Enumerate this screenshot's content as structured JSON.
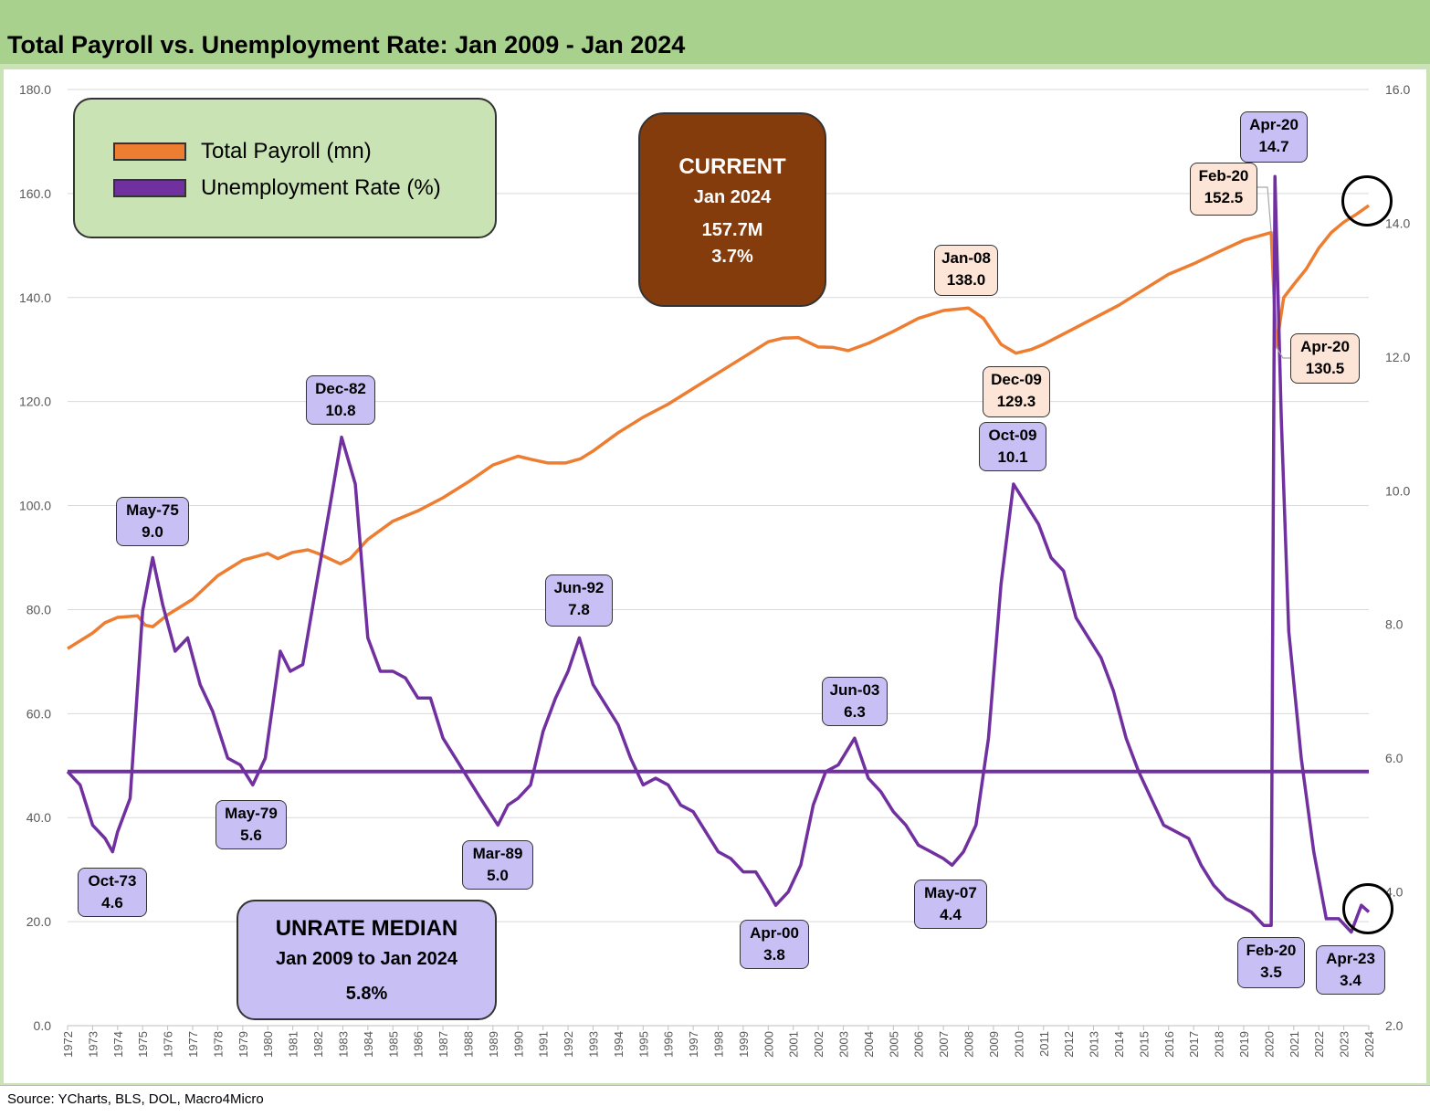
{
  "title": "Total Payroll vs. Unemployment Rate: Jan 2009 - Jan 2024",
  "source": "Source: YCharts, BLS, DOL, Macro4Micro",
  "legend": {
    "payroll": "Total Payroll (mn)",
    "unrate": "Unemployment Rate (%)"
  },
  "current_box": {
    "heading": "CURRENT",
    "date": "Jan 2024",
    "payroll": "157.7M",
    "unrate": "3.7%"
  },
  "median_box": {
    "heading": "UNRATE MEDIAN",
    "period": "Jan 2009 to Jan 2024",
    "value": "5.8%"
  },
  "colors": {
    "payroll": "#ed7d31",
    "unrate": "#7030a0",
    "median_line": "#7030a0",
    "grid": "#d9d9d9",
    "current_box": "#843c0c",
    "unrate_label": "#c8c0f5",
    "payroll_label": "#fce4d6",
    "title_band": "#a9d18e",
    "frame": "#c9e3b4"
  },
  "chart_data": {
    "type": "line",
    "x_range": [
      1972,
      2024
    ],
    "x_ticks": [
      "1972",
      "1973",
      "1974",
      "1975",
      "1976",
      "1977",
      "1978",
      "1979",
      "1980",
      "1981",
      "1982",
      "1983",
      "1984",
      "1985",
      "1986",
      "1987",
      "1988",
      "1989",
      "1990",
      "1991",
      "1992",
      "1993",
      "1994",
      "1995",
      "1996",
      "1997",
      "1998",
      "1999",
      "2000",
      "2001",
      "2002",
      "2003",
      "2004",
      "2005",
      "2006",
      "2007",
      "2008",
      "2009",
      "2010",
      "2011",
      "2012",
      "2013",
      "2014",
      "2015",
      "2016",
      "2017",
      "2018",
      "2019",
      "2020",
      "2021",
      "2022",
      "2023",
      "2024"
    ],
    "y_left": {
      "range": [
        0,
        180
      ],
      "ticks": [
        "0.0",
        "20.0",
        "40.0",
        "60.0",
        "80.0",
        "100.0",
        "120.0",
        "140.0",
        "160.0",
        "180.0"
      ]
    },
    "y_right": {
      "range": [
        2,
        16
      ],
      "ticks": [
        "2.0",
        "4.0",
        "6.0",
        "8.0",
        "10.0",
        "12.0",
        "14.0",
        "16.0"
      ]
    },
    "grid": true,
    "legend_position": "top-left",
    "median_unrate": 5.8,
    "series": [
      {
        "name": "Total Payroll (mn)",
        "axis": "left",
        "points": [
          [
            1972.0,
            72.5
          ],
          [
            1973.0,
            75.5
          ],
          [
            1973.5,
            77.5
          ],
          [
            1974.0,
            78.5
          ],
          [
            1974.8,
            78.8
          ],
          [
            1975.1,
            77.0
          ],
          [
            1975.4,
            76.7
          ],
          [
            1976.0,
            79.0
          ],
          [
            1977.0,
            82.0
          ],
          [
            1978.0,
            86.5
          ],
          [
            1979.0,
            89.5
          ],
          [
            1980.0,
            90.8
          ],
          [
            1980.4,
            89.8
          ],
          [
            1981.0,
            91.0
          ],
          [
            1981.6,
            91.5
          ],
          [
            1982.0,
            90.8
          ],
          [
            1982.9,
            88.8
          ],
          [
            1983.3,
            89.8
          ],
          [
            1984.0,
            93.5
          ],
          [
            1985.0,
            97.0
          ],
          [
            1986.0,
            99.0
          ],
          [
            1987.0,
            101.5
          ],
          [
            1988.0,
            104.5
          ],
          [
            1989.0,
            107.8
          ],
          [
            1990.0,
            109.5
          ],
          [
            1990.6,
            108.8
          ],
          [
            1991.2,
            108.2
          ],
          [
            1991.9,
            108.2
          ],
          [
            1992.5,
            109.0
          ],
          [
            1993.0,
            110.5
          ],
          [
            1994.0,
            114.0
          ],
          [
            1995.0,
            117.0
          ],
          [
            1996.0,
            119.5
          ],
          [
            1997.0,
            122.5
          ],
          [
            1998.0,
            125.5
          ],
          [
            1999.0,
            128.5
          ],
          [
            2000.0,
            131.5
          ],
          [
            2000.6,
            132.2
          ],
          [
            2001.2,
            132.3
          ],
          [
            2002.0,
            130.5
          ],
          [
            2002.6,
            130.4
          ],
          [
            2003.2,
            129.8
          ],
          [
            2004.0,
            131.2
          ],
          [
            2005.0,
            133.5
          ],
          [
            2006.0,
            136.0
          ],
          [
            2007.0,
            137.5
          ],
          [
            2008.0,
            138.0
          ],
          [
            2008.6,
            136.0
          ],
          [
            2009.3,
            131.0
          ],
          [
            2009.9,
            129.3
          ],
          [
            2010.5,
            130.0
          ],
          [
            2011.0,
            131.0
          ],
          [
            2012.0,
            133.5
          ],
          [
            2013.0,
            136.0
          ],
          [
            2014.0,
            138.5
          ],
          [
            2015.0,
            141.5
          ],
          [
            2016.0,
            144.5
          ],
          [
            2017.0,
            146.5
          ],
          [
            2018.0,
            148.8
          ],
          [
            2019.0,
            151.0
          ],
          [
            2020.1,
            152.5
          ],
          [
            2020.3,
            130.5
          ],
          [
            2020.6,
            140.0
          ],
          [
            2021.0,
            142.5
          ],
          [
            2021.5,
            145.5
          ],
          [
            2022.0,
            149.5
          ],
          [
            2022.5,
            152.5
          ],
          [
            2023.0,
            154.5
          ],
          [
            2023.5,
            156.0
          ],
          [
            2024.0,
            157.7
          ]
        ]
      },
      {
        "name": "Unemployment Rate (%)",
        "axis": "right",
        "points": [
          [
            1972.0,
            5.8
          ],
          [
            1972.5,
            5.6
          ],
          [
            1973.0,
            5.0
          ],
          [
            1973.5,
            4.8
          ],
          [
            1973.8,
            4.6
          ],
          [
            1974.0,
            4.9
          ],
          [
            1974.5,
            5.4
          ],
          [
            1975.0,
            8.2
          ],
          [
            1975.4,
            9.0
          ],
          [
            1975.8,
            8.3
          ],
          [
            1976.3,
            7.6
          ],
          [
            1976.8,
            7.8
          ],
          [
            1977.3,
            7.1
          ],
          [
            1977.8,
            6.7
          ],
          [
            1978.4,
            6.0
          ],
          [
            1978.9,
            5.9
          ],
          [
            1979.4,
            5.6
          ],
          [
            1979.9,
            6.0
          ],
          [
            1980.5,
            7.6
          ],
          [
            1980.9,
            7.3
          ],
          [
            1981.4,
            7.4
          ],
          [
            1981.9,
            8.5
          ],
          [
            1982.5,
            9.8
          ],
          [
            1982.95,
            10.8
          ],
          [
            1983.5,
            10.1
          ],
          [
            1984.0,
            7.8
          ],
          [
            1984.5,
            7.3
          ],
          [
            1985.0,
            7.3
          ],
          [
            1985.5,
            7.2
          ],
          [
            1986.0,
            6.9
          ],
          [
            1986.5,
            6.9
          ],
          [
            1987.0,
            6.3
          ],
          [
            1987.5,
            6.0
          ],
          [
            1988.0,
            5.7
          ],
          [
            1988.5,
            5.4
          ],
          [
            1989.2,
            5.0
          ],
          [
            1989.6,
            5.3
          ],
          [
            1990.0,
            5.4
          ],
          [
            1990.5,
            5.6
          ],
          [
            1991.0,
            6.4
          ],
          [
            1991.5,
            6.9
          ],
          [
            1992.0,
            7.3
          ],
          [
            1992.45,
            7.8
          ],
          [
            1993.0,
            7.1
          ],
          [
            1993.5,
            6.8
          ],
          [
            1994.0,
            6.5
          ],
          [
            1994.5,
            6.0
          ],
          [
            1995.0,
            5.6
          ],
          [
            1995.5,
            5.7
          ],
          [
            1996.0,
            5.6
          ],
          [
            1996.5,
            5.3
          ],
          [
            1997.0,
            5.2
          ],
          [
            1997.5,
            4.9
          ],
          [
            1998.0,
            4.6
          ],
          [
            1998.5,
            4.5
          ],
          [
            1999.0,
            4.3
          ],
          [
            1999.5,
            4.3
          ],
          [
            2000.0,
            4.0
          ],
          [
            2000.3,
            3.8
          ],
          [
            2000.8,
            4.0
          ],
          [
            2001.3,
            4.4
          ],
          [
            2001.8,
            5.3
          ],
          [
            2002.3,
            5.8
          ],
          [
            2002.8,
            5.9
          ],
          [
            2003.45,
            6.3
          ],
          [
            2004.0,
            5.7
          ],
          [
            2004.5,
            5.5
          ],
          [
            2005.0,
            5.2
          ],
          [
            2005.5,
            5.0
          ],
          [
            2006.0,
            4.7
          ],
          [
            2006.5,
            4.6
          ],
          [
            2007.0,
            4.5
          ],
          [
            2007.35,
            4.4
          ],
          [
            2007.8,
            4.6
          ],
          [
            2008.3,
            5.0
          ],
          [
            2008.8,
            6.3
          ],
          [
            2009.3,
            8.6
          ],
          [
            2009.8,
            10.1
          ],
          [
            2010.3,
            9.8
          ],
          [
            2010.8,
            9.5
          ],
          [
            2011.3,
            9.0
          ],
          [
            2011.8,
            8.8
          ],
          [
            2012.3,
            8.1
          ],
          [
            2012.8,
            7.8
          ],
          [
            2013.3,
            7.5
          ],
          [
            2013.8,
            7.0
          ],
          [
            2014.3,
            6.3
          ],
          [
            2014.8,
            5.8
          ],
          [
            2015.3,
            5.4
          ],
          [
            2015.8,
            5.0
          ],
          [
            2016.3,
            4.9
          ],
          [
            2016.8,
            4.8
          ],
          [
            2017.3,
            4.4
          ],
          [
            2017.8,
            4.1
          ],
          [
            2018.3,
            3.9
          ],
          [
            2018.8,
            3.8
          ],
          [
            2019.3,
            3.7
          ],
          [
            2019.8,
            3.5
          ],
          [
            2020.1,
            3.5
          ],
          [
            2020.25,
            14.7
          ],
          [
            2020.5,
            11.1
          ],
          [
            2020.8,
            7.9
          ],
          [
            2021.3,
            6.0
          ],
          [
            2021.8,
            4.6
          ],
          [
            2022.3,
            3.6
          ],
          [
            2022.8,
            3.6
          ],
          [
            2023.3,
            3.4
          ],
          [
            2023.7,
            3.8
          ],
          [
            2024.0,
            3.7
          ]
        ]
      }
    ],
    "annotations": [
      {
        "series": "unrate",
        "label": "May-75",
        "value": "9.0"
      },
      {
        "series": "unrate",
        "label": "Oct-73",
        "value": "4.6"
      },
      {
        "series": "unrate",
        "label": "May-79",
        "value": "5.6"
      },
      {
        "series": "unrate",
        "label": "Dec-82",
        "value": "10.8"
      },
      {
        "series": "unrate",
        "label": "Mar-89",
        "value": "5.0"
      },
      {
        "series": "unrate",
        "label": "Jun-92",
        "value": "7.8"
      },
      {
        "series": "unrate",
        "label": "Apr-00",
        "value": "3.8"
      },
      {
        "series": "unrate",
        "label": "Jun-03",
        "value": "6.3"
      },
      {
        "series": "unrate",
        "label": "May-07",
        "value": "4.4"
      },
      {
        "series": "unrate",
        "label": "Oct-09",
        "value": "10.1"
      },
      {
        "series": "unrate",
        "label": "Apr-20",
        "value": "14.7"
      },
      {
        "series": "unrate",
        "label": "Feb-20",
        "value": "3.5"
      },
      {
        "series": "unrate",
        "label": "Apr-23",
        "value": "3.4"
      },
      {
        "series": "payroll",
        "label": "Jan-08",
        "value": "138.0"
      },
      {
        "series": "payroll",
        "label": "Dec-09",
        "value": "129.3"
      },
      {
        "series": "payroll",
        "label": "Feb-20",
        "value": "152.5"
      },
      {
        "series": "payroll",
        "label": "Apr-20",
        "value": "130.5"
      }
    ]
  }
}
